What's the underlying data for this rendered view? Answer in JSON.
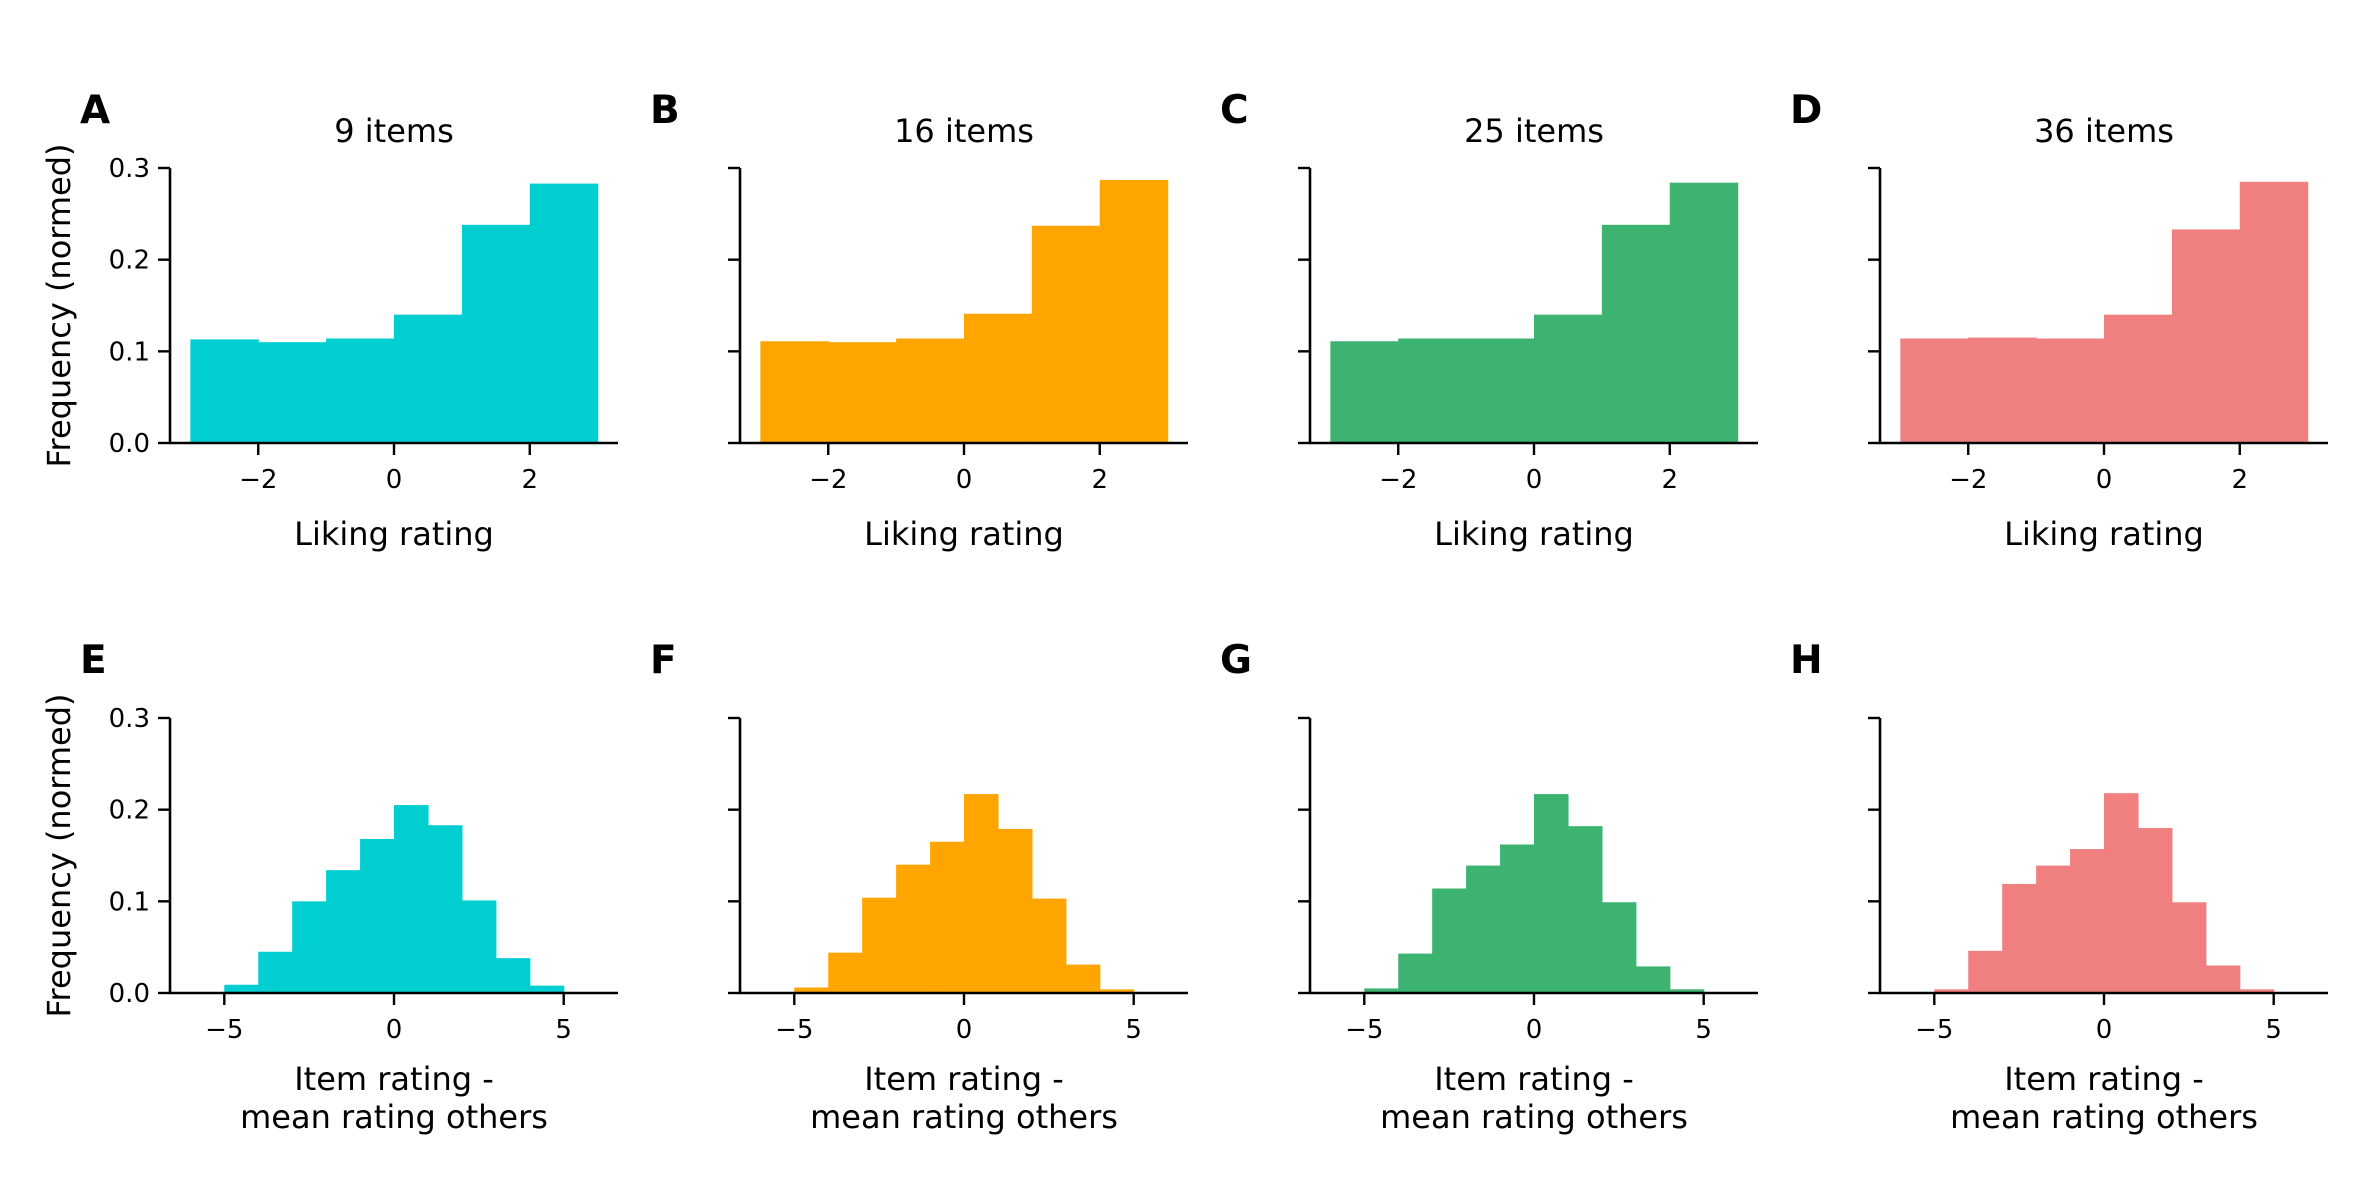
{
  "figure": {
    "rows": [
      {
        "xlabel": "Liking rating",
        "xticks": [
          -2,
          0,
          2
        ],
        "xtick_labels": [
          "−2",
          "0",
          "2"
        ],
        "xlim": [
          -3.3,
          3.3
        ]
      },
      {
        "xlabel_lines": [
          "Item rating -",
          "mean rating others"
        ],
        "xticks": [
          -5,
          0,
          5
        ],
        "xtick_labels": [
          "−5",
          "0",
          "5"
        ],
        "xlim": [
          -6.6,
          6.6
        ]
      }
    ],
    "ylabel": "Frequency (normed)",
    "yticks": [
      0.0,
      0.1,
      0.2,
      0.3
    ],
    "ytick_labels": [
      "0.0",
      "0.1",
      "0.2",
      "0.3"
    ],
    "ylim": [
      0,
      0.3
    ],
    "columns": [
      {
        "title": "9 items",
        "color": "#00CED1"
      },
      {
        "title": "16 items",
        "color": "#FFA500"
      },
      {
        "title": "25 items",
        "color": "#3CB371"
      },
      {
        "title": "36 items",
        "color": "#F08080"
      }
    ]
  },
  "chart_data": [
    {
      "type": "bar",
      "panel": "A",
      "title": "9 items",
      "xlabel": "Liking rating",
      "ylabel": "Frequency (normed)",
      "ylim": [
        0,
        0.3
      ],
      "color": "#00CED1",
      "bin_edges": [
        -3,
        -2,
        -1,
        0,
        1,
        2,
        3
      ],
      "values": [
        0.113,
        0.11,
        0.114,
        0.14,
        0.238,
        0.283
      ]
    },
    {
      "type": "bar",
      "panel": "B",
      "title": "16 items",
      "xlabel": "Liking rating",
      "ylabel": "",
      "ylim": [
        0,
        0.3
      ],
      "color": "#FFA500",
      "bin_edges": [
        -3,
        -2,
        -1,
        0,
        1,
        2,
        3
      ],
      "values": [
        0.111,
        0.11,
        0.114,
        0.141,
        0.237,
        0.287
      ]
    },
    {
      "type": "bar",
      "panel": "C",
      "title": "25 items",
      "xlabel": "Liking rating",
      "ylabel": "",
      "ylim": [
        0,
        0.3
      ],
      "color": "#3CB371",
      "bin_edges": [
        -3,
        -2,
        -1,
        0,
        1,
        2,
        3
      ],
      "values": [
        0.111,
        0.114,
        0.114,
        0.14,
        0.238,
        0.284
      ]
    },
    {
      "type": "bar",
      "panel": "D",
      "title": "36 items",
      "xlabel": "Liking rating",
      "ylabel": "",
      "ylim": [
        0,
        0.3
      ],
      "color": "#F08080",
      "bin_edges": [
        -3,
        -2,
        -1,
        0,
        1,
        2,
        3
      ],
      "values": [
        0.114,
        0.115,
        0.114,
        0.14,
        0.233,
        0.285
      ]
    },
    {
      "type": "bar",
      "panel": "E",
      "title": "",
      "xlabel": "Item rating - mean rating others",
      "ylabel": "Frequency (normed)",
      "ylim": [
        0,
        0.3
      ],
      "color": "#00CED1",
      "bin_edges": [
        -5,
        -4,
        -3,
        -2,
        -1,
        0,
        1,
        2,
        3,
        4,
        5
      ],
      "values": [
        0.009,
        0.045,
        0.1,
        0.134,
        0.168,
        0.205,
        0.183,
        0.101,
        0.038,
        0.008
      ]
    },
    {
      "type": "bar",
      "panel": "F",
      "title": "",
      "xlabel": "Item rating - mean rating others",
      "ylabel": "",
      "ylim": [
        0,
        0.3
      ],
      "color": "#FFA500",
      "bin_edges": [
        -5,
        -4,
        -3,
        -2,
        -1,
        0,
        1,
        2,
        3,
        4,
        5
      ],
      "values": [
        0.006,
        0.044,
        0.104,
        0.14,
        0.165,
        0.217,
        0.179,
        0.103,
        0.031,
        0.004
      ]
    },
    {
      "type": "bar",
      "panel": "G",
      "title": "",
      "xlabel": "Item rating - mean rating others",
      "ylabel": "",
      "ylim": [
        0,
        0.3
      ],
      "color": "#3CB371",
      "bin_edges": [
        -5,
        -4,
        -3,
        -2,
        -1,
        0,
        1,
        2,
        3,
        4,
        5
      ],
      "values": [
        0.005,
        0.043,
        0.114,
        0.139,
        0.162,
        0.217,
        0.182,
        0.099,
        0.029,
        0.004
      ]
    },
    {
      "type": "bar",
      "panel": "H",
      "title": "",
      "xlabel": "Item rating - mean rating others",
      "ylabel": "",
      "ylim": [
        0,
        0.3
      ],
      "color": "#F08080",
      "bin_edges": [
        -5,
        -4,
        -3,
        -2,
        -1,
        0,
        1,
        2,
        3,
        4,
        5
      ],
      "values": [
        0.004,
        0.046,
        0.119,
        0.139,
        0.157,
        0.218,
        0.18,
        0.099,
        0.03,
        0.004
      ]
    }
  ]
}
